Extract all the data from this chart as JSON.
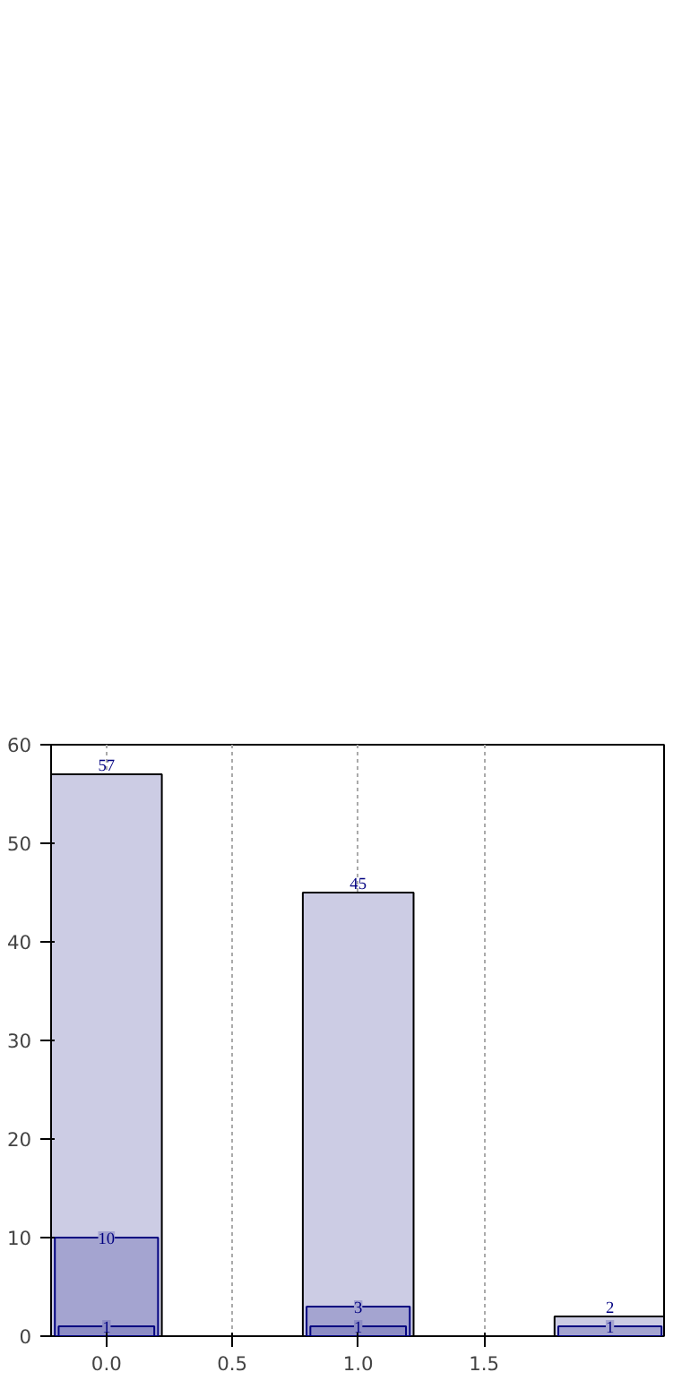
{
  "chart_data": {
    "type": "bar",
    "x": [
      0,
      1,
      2
    ],
    "series": [
      {
        "color": "#ccccE4",
        "values": [
          57,
          45,
          2
        ]
      },
      {
        "color": "#a4a4d0",
        "values": [
          10,
          3,
          1
        ]
      },
      {
        "color": "#8c8cc4",
        "values": [
          1,
          1,
          null
        ]
      }
    ],
    "data_labels": true,
    "xlim": [
      -0.22,
      2.215
    ],
    "xticks": [
      {
        "value": 0,
        "label": "0.0"
      },
      {
        "value": 0.5,
        "label": "0.5"
      },
      {
        "value": 1,
        "label": "1.0"
      },
      {
        "value": 1.5,
        "label": "1.5"
      }
    ],
    "ylim": [
      0,
      60
    ],
    "yticks": [
      0,
      10,
      20,
      30,
      40,
      50,
      60
    ],
    "grid": "x"
  }
}
